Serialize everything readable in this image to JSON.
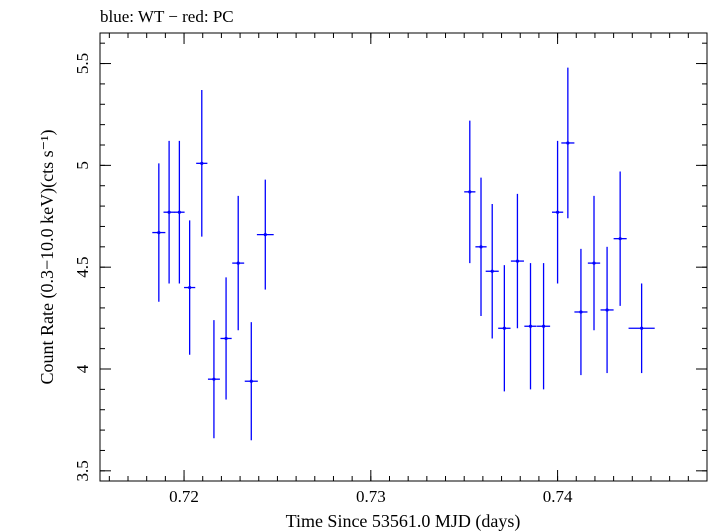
{
  "chart_data": {
    "type": "scatter",
    "title": "blue: WT − red: PC",
    "xlabel": "Time Since 53561.0 MJD (days)",
    "ylabel": "Count Rate (0.3−10.0 keV)(cts s⁻¹)",
    "xlim": [
      0.7155,
      0.748
    ],
    "ylim": [
      3.45,
      5.65
    ],
    "xticks": [
      0.72,
      0.73,
      0.74
    ],
    "xtick_labels": [
      "0.72",
      "0.73",
      "0.74"
    ],
    "yticks": [
      3.5,
      4,
      4.5,
      5,
      5.5
    ],
    "ytick_labels": [
      "3.5",
      "4",
      "4.5",
      "5",
      "5.5"
    ],
    "x_minor_step": 0.001,
    "y_minor_step": 0.1,
    "grid": false,
    "series": [
      {
        "color": "#0000ff",
        "x": [
          0.71865,
          0.7192,
          0.71975,
          0.7203,
          0.72095,
          0.7216,
          0.72225,
          0.7229,
          0.7236,
          0.72435,
          0.7353,
          0.7359,
          0.7365,
          0.73715,
          0.73785,
          0.73855,
          0.73925,
          0.74,
          0.74055,
          0.74125,
          0.74195,
          0.74265,
          0.74335,
          0.7445
        ],
        "xerr": [
          0.00035,
          0.0003,
          0.00028,
          0.0003,
          0.0003,
          0.00032,
          0.0003,
          0.00032,
          0.00035,
          0.00045,
          0.0003,
          0.0003,
          0.00035,
          0.00033,
          0.00035,
          0.00033,
          0.00035,
          0.0003,
          0.00035,
          0.00035,
          0.00033,
          0.00035,
          0.00035,
          0.0007
        ],
        "y": [
          4.67,
          4.77,
          4.77,
          4.4,
          5.01,
          3.95,
          4.15,
          4.52,
          3.94,
          4.66,
          4.87,
          4.6,
          4.48,
          4.2,
          4.53,
          4.21,
          4.21,
          4.77,
          5.11,
          4.28,
          4.52,
          4.29,
          4.64,
          4.2
        ],
        "yerr": [
          0.34,
          0.35,
          0.35,
          0.33,
          0.36,
          0.29,
          0.3,
          0.33,
          0.29,
          0.27,
          0.35,
          0.34,
          0.33,
          0.31,
          0.33,
          0.31,
          0.31,
          0.35,
          0.37,
          0.31,
          0.33,
          0.31,
          0.33,
          0.22
        ]
      }
    ]
  }
}
